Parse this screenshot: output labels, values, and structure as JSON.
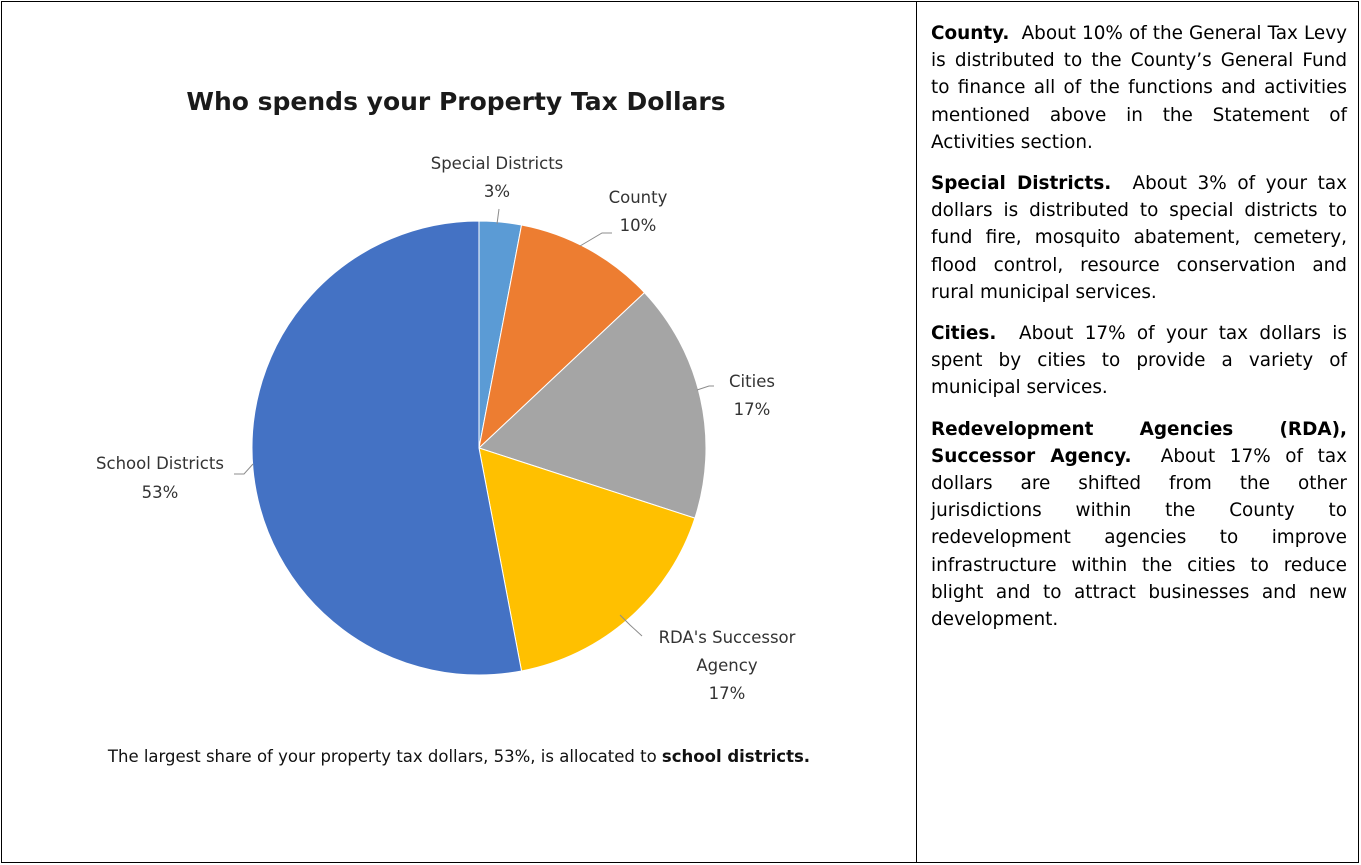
{
  "chart_data": {
    "type": "pie",
    "title": "Who spends your Property Tax Dollars",
    "slices": [
      {
        "name": "Special Districts",
        "value": 3,
        "label": "3%",
        "color": "#5B9BD5"
      },
      {
        "name": "County",
        "value": 10,
        "label": "10%",
        "color": "#ED7D31"
      },
      {
        "name": "Cities",
        "value": 17,
        "label": "17%",
        "color": "#A5A5A5"
      },
      {
        "name": "RDA's Successor Agency",
        "value": 17,
        "label": "17%",
        "color": "#FFC000"
      },
      {
        "name": "School Districts",
        "value": 53,
        "label": "53%",
        "color": "#4472C4"
      }
    ]
  },
  "caption": {
    "prefix": "The largest share of your property tax dollars, 53%, is allocated to ",
    "emphasis": "school districts."
  },
  "paragraphs": [
    {
      "heading": "County.",
      "text": "About 10% of the General Tax Levy is distributed to the County’s General Fund to finance all of the functions and activities mentioned above in the Statement of Activities section."
    },
    {
      "heading": "Special Districts.",
      "text": "About 3% of your tax dollars is distributed to special districts to fund fire, mosquito abatement, cemetery, flood control, resource conservation and rural municipal services."
    },
    {
      "heading": "Cities.",
      "text": "About 17% of your tax dollars is spent by cities to provide a variety of municipal services."
    },
    {
      "heading": "Redevelopment Agencies (RDA), Successor Agency.",
      "text": "About 17% of tax dollars are shifted from the other jurisdictions within the County to redevelopment agencies to improve infrastructure within the cities to reduce blight and to attract businesses and new development."
    }
  ]
}
